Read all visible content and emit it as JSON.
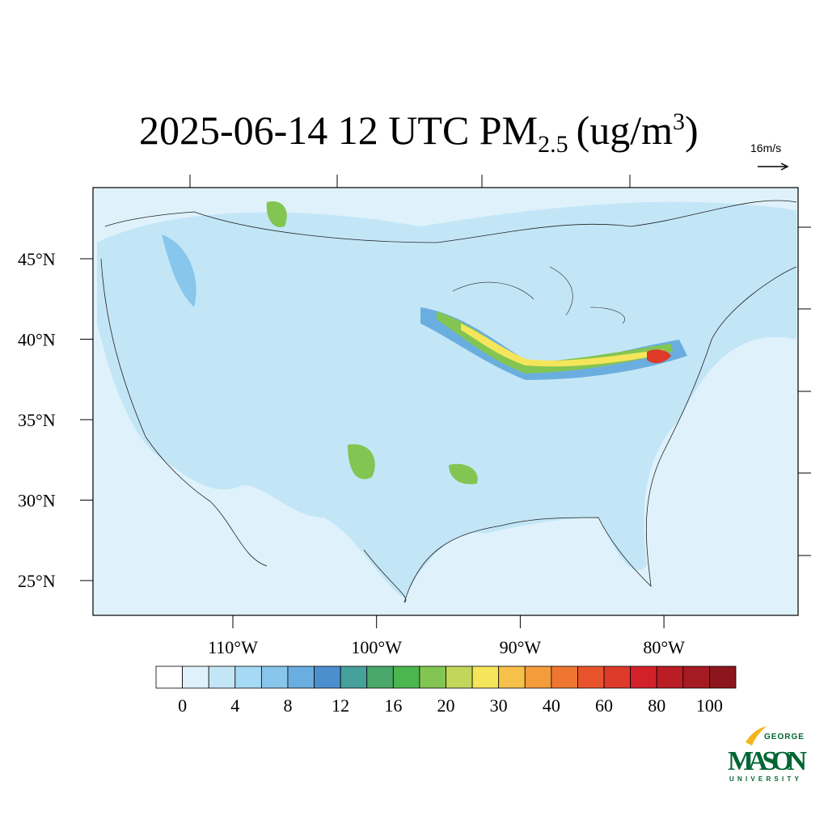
{
  "title": {
    "main": "2025-06-14 12 UTC PM",
    "sub": "2.5",
    "unit": "(ug/m",
    "sup": "3",
    "close": ")"
  },
  "reference_vector": "16m/s",
  "map": {
    "lat_ticks": [
      {
        "value": 45,
        "label": "45°N"
      },
      {
        "value": 40,
        "label": "40°N"
      },
      {
        "value": 35,
        "label": "35°N"
      },
      {
        "value": 30,
        "label": "30°N"
      },
      {
        "value": 25,
        "label": "25°N"
      }
    ],
    "lon_ticks": [
      {
        "value": -110,
        "label": "110°W"
      },
      {
        "value": -100,
        "label": "100°W"
      },
      {
        "value": -90,
        "label": "90°W"
      },
      {
        "value": -80,
        "label": "80°W"
      }
    ]
  },
  "colorbar": {
    "ticks": [
      0,
      4,
      8,
      12,
      16,
      20,
      30,
      40,
      60,
      80,
      100
    ],
    "colors": [
      "#ffffff",
      "#dff2fb",
      "#c3e6f7",
      "#a6d9f3",
      "#88c6ec",
      "#6aaee0",
      "#4b8fcf",
      "#46a19d",
      "#4aa86a",
      "#4cb64e",
      "#83c552",
      "#c2d65a",
      "#f5e55b",
      "#f7c04a",
      "#f49c3c",
      "#ef7631",
      "#e8532c",
      "#dd3a2a",
      "#d22129",
      "#bb1d26",
      "#a51b22",
      "#8b161c"
    ]
  },
  "logo": {
    "top": "GEORGE",
    "main": "MASON",
    "bottom": "UNIVERSITY"
  }
}
